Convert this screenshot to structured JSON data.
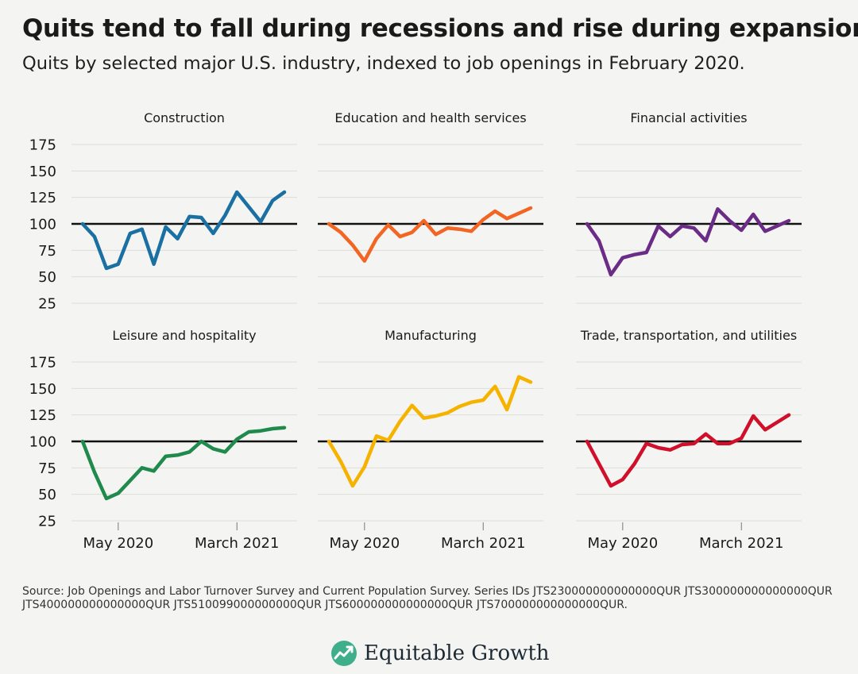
{
  "title": "Quits tend to fall during recessions and rise during expansions",
  "subtitle": "Quits by selected major U.S. industry, indexed to job openings in February 2020.",
  "source": "Source: Job Openings and Labor Turnover Survey and Current Population Survey. Series IDs JTS230000000000000QUR JTS300000000000000QUR JTS400000000000000QUR JTS510099000000000QUR JTS600000000000000QUR JTS700000000000000QUR.",
  "logo": {
    "text": "Equitable Growth",
    "icon": "growth-chart-icon"
  },
  "chart_data": [
    {
      "type": "line",
      "title": "Construction",
      "color": "#1a6fa3",
      "x": [
        "2020-02",
        "2020-03",
        "2020-04",
        "2020-05",
        "2020-06",
        "2020-07",
        "2020-08",
        "2020-09",
        "2020-10",
        "2020-11",
        "2020-12",
        "2021-01",
        "2021-02",
        "2021-03",
        "2021-04",
        "2021-05",
        "2021-06",
        "2021-07"
      ],
      "values": [
        100,
        88,
        58,
        62,
        91,
        95,
        62,
        97,
        86,
        107,
        106,
        91,
        108,
        130,
        116,
        102,
        122,
        130
      ],
      "ylim": [
        25,
        175
      ],
      "yticks": [
        25,
        50,
        75,
        100,
        125,
        150,
        175
      ],
      "xticks": [
        {
          "x": "2020-05",
          "label": "May 2020"
        },
        {
          "x": "2021-03",
          "label": "March 2021"
        }
      ],
      "reference_line": 100,
      "grid": true
    },
    {
      "type": "line",
      "title": "Education and health services",
      "color": "#f26522",
      "x": [
        "2020-02",
        "2020-03",
        "2020-04",
        "2020-05",
        "2020-06",
        "2020-07",
        "2020-08",
        "2020-09",
        "2020-10",
        "2020-11",
        "2020-12",
        "2021-01",
        "2021-02",
        "2021-03",
        "2021-04",
        "2021-05",
        "2021-06",
        "2021-07"
      ],
      "values": [
        100,
        92,
        80,
        65,
        86,
        99,
        88,
        92,
        103,
        90,
        96,
        95,
        93,
        104,
        112,
        105,
        110,
        115
      ],
      "ylim": [
        25,
        175
      ],
      "yticks": [
        25,
        50,
        75,
        100,
        125,
        150,
        175
      ],
      "xticks": [
        {
          "x": "2020-05",
          "label": "May 2020"
        },
        {
          "x": "2021-03",
          "label": "March 2021"
        }
      ],
      "reference_line": 100,
      "grid": true
    },
    {
      "type": "line",
      "title": "Financial activities",
      "color": "#6a2c86",
      "x": [
        "2020-02",
        "2020-03",
        "2020-04",
        "2020-05",
        "2020-06",
        "2020-07",
        "2020-08",
        "2020-09",
        "2020-10",
        "2020-11",
        "2020-12",
        "2021-01",
        "2021-02",
        "2021-03",
        "2021-04",
        "2021-05",
        "2021-06",
        "2021-07"
      ],
      "values": [
        100,
        84,
        52,
        68,
        71,
        73,
        98,
        88,
        98,
        96,
        84,
        114,
        103,
        94,
        109,
        93,
        98,
        103
      ],
      "ylim": [
        25,
        175
      ],
      "yticks": [
        25,
        50,
        75,
        100,
        125,
        150,
        175
      ],
      "xticks": [
        {
          "x": "2020-05",
          "label": "May 2020"
        },
        {
          "x": "2021-03",
          "label": "March 2021"
        }
      ],
      "reference_line": 100,
      "grid": true
    },
    {
      "type": "line",
      "title": "Leisure and hospitality",
      "color": "#1f8a4c",
      "x": [
        "2020-02",
        "2020-03",
        "2020-04",
        "2020-05",
        "2020-06",
        "2020-07",
        "2020-08",
        "2020-09",
        "2020-10",
        "2020-11",
        "2020-12",
        "2021-01",
        "2021-02",
        "2021-03",
        "2021-04",
        "2021-05",
        "2021-06",
        "2021-07"
      ],
      "values": [
        100,
        71,
        46,
        51,
        63,
        75,
        72,
        86,
        87,
        90,
        100,
        93,
        90,
        102,
        109,
        110,
        112,
        113
      ],
      "ylim": [
        25,
        175
      ],
      "yticks": [
        25,
        50,
        75,
        100,
        125,
        150,
        175
      ],
      "xticks": [
        {
          "x": "2020-05",
          "label": "May 2020"
        },
        {
          "x": "2021-03",
          "label": "March 2021"
        }
      ],
      "reference_line": 100,
      "grid": true
    },
    {
      "type": "line",
      "title": "Manufacturing",
      "color": "#f5b300",
      "x": [
        "2020-02",
        "2020-03",
        "2020-04",
        "2020-05",
        "2020-06",
        "2020-07",
        "2020-08",
        "2020-09",
        "2020-10",
        "2020-11",
        "2020-12",
        "2021-01",
        "2021-02",
        "2021-03",
        "2021-04",
        "2021-05",
        "2021-06",
        "2021-07"
      ],
      "values": [
        100,
        81,
        58,
        76,
        105,
        101,
        119,
        134,
        122,
        124,
        127,
        133,
        137,
        139,
        152,
        130,
        161,
        156
      ],
      "ylim": [
        25,
        175
      ],
      "yticks": [
        25,
        50,
        75,
        100,
        125,
        150,
        175
      ],
      "xticks": [
        {
          "x": "2020-05",
          "label": "May 2020"
        },
        {
          "x": "2021-03",
          "label": "March 2021"
        }
      ],
      "reference_line": 100,
      "grid": true
    },
    {
      "type": "line",
      "title": "Trade, transportation, and utilities",
      "color": "#d0102a",
      "x": [
        "2020-02",
        "2020-03",
        "2020-04",
        "2020-05",
        "2020-06",
        "2020-07",
        "2020-08",
        "2020-09",
        "2020-10",
        "2020-11",
        "2020-12",
        "2021-01",
        "2021-02",
        "2021-03",
        "2021-04",
        "2021-05",
        "2021-06",
        "2021-07"
      ],
      "values": [
        100,
        79,
        58,
        64,
        79,
        98,
        94,
        92,
        97,
        98,
        107,
        98,
        98,
        103,
        124,
        111,
        118,
        125
      ],
      "ylim": [
        25,
        175
      ],
      "yticks": [
        25,
        50,
        75,
        100,
        125,
        150,
        175
      ],
      "xticks": [
        {
          "x": "2020-05",
          "label": "May 2020"
        },
        {
          "x": "2021-03",
          "label": "March 2021"
        }
      ],
      "reference_line": 100,
      "grid": true
    }
  ]
}
